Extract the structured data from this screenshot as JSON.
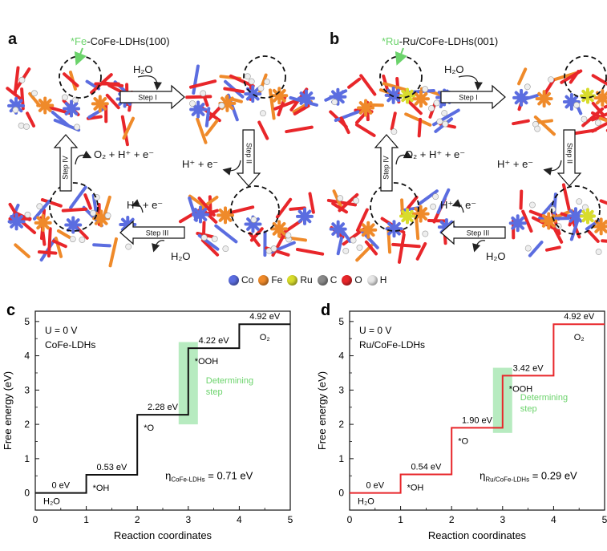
{
  "panels": {
    "a": {
      "letter": "a",
      "site_prefix": "*Fe",
      "site_suffix": "-CoFe-LDHs(100)",
      "h2o": "H₂O",
      "steps": [
        "Step I",
        "Step II",
        "Step III",
        "Step IV"
      ],
      "products": "O₂ + H⁺ + e⁻",
      "proton_electron": "H⁺ + e⁻"
    },
    "b": {
      "letter": "b",
      "site_prefix": "*Ru",
      "site_suffix": "-Ru/CoFe-LDHs(001)",
      "h2o": "H₂O",
      "steps": [
        "Step I",
        "Step II",
        "Step III",
        "Step IV"
      ],
      "products": "O₂ + H⁺ + e⁻",
      "proton_electron": "H⁺ + e⁻"
    }
  },
  "legend": [
    {
      "symbol": "Co",
      "color": "#5b6de0"
    },
    {
      "symbol": "Fe",
      "color": "#ef8a2a"
    },
    {
      "symbol": "Ru",
      "color": "#d8dc2c"
    },
    {
      "symbol": "C",
      "color": "#8a8a8a"
    },
    {
      "symbol": "O",
      "color": "#e8262a"
    },
    {
      "symbol": "H",
      "color": "#e6e6e6"
    }
  ],
  "colors": {
    "co": "#5b6de0",
    "fe": "#ef8a2a",
    "ru": "#d8dc2c",
    "o": "#e8262a",
    "h": "#eeeeee",
    "line_c": "#111111",
    "line_d": "#e8262a",
    "highlight": "#b7ebc0",
    "highlight_text": "#6bd36b"
  },
  "chart_data": [
    {
      "type": "line",
      "panel": "c",
      "xlabel": "Reaction coordinates",
      "ylabel": "Free energy (eV)",
      "xlim": [
        0,
        5
      ],
      "ylim": [
        -0.5,
        5.3
      ],
      "xticks": [
        0,
        1,
        2,
        3,
        4,
        5
      ],
      "yticks": [
        0,
        1,
        2,
        3,
        4,
        5
      ],
      "potential": "U = 0 V",
      "material": "CoFe-LDHs",
      "steps": [
        {
          "x0": 0,
          "x1": 1,
          "y": 0,
          "label": "0 eV",
          "species": "H₂O"
        },
        {
          "x0": 1,
          "x1": 2,
          "y": 0.53,
          "label": "0.53 eV",
          "species": "*OH"
        },
        {
          "x0": 2,
          "x1": 3,
          "y": 2.28,
          "label": "2.28 eV",
          "species": "*O"
        },
        {
          "x0": 3,
          "x1": 4,
          "y": 4.22,
          "label": "4.22 eV",
          "species": "*OOH"
        },
        {
          "x0": 4,
          "x1": 5,
          "y": 4.92,
          "label": "4.92 eV",
          "species": "O₂"
        }
      ],
      "determining": {
        "x": 3,
        "y0": 2.0,
        "y1": 4.4,
        "label_lines": [
          "Determining",
          "step"
        ]
      },
      "eta": {
        "symbol": "η",
        "sub": "CoFe-LDHs",
        "value": " = 0.71 eV"
      }
    },
    {
      "type": "line",
      "panel": "d",
      "xlabel": "Reaction coordinates",
      "ylabel": "Free energy (eV)",
      "xlim": [
        0,
        5
      ],
      "ylim": [
        -0.5,
        5.3
      ],
      "xticks": [
        0,
        1,
        2,
        3,
        4,
        5
      ],
      "yticks": [
        0,
        1,
        2,
        3,
        4,
        5
      ],
      "potential": "U = 0 V",
      "material": "Ru/CoFe-LDHs",
      "steps": [
        {
          "x0": 0,
          "x1": 1,
          "y": 0,
          "label": "0 eV",
          "species": "H₂O"
        },
        {
          "x0": 1,
          "x1": 2,
          "y": 0.54,
          "label": "0.54 eV",
          "species": "*OH"
        },
        {
          "x0": 2,
          "x1": 3,
          "y": 1.9,
          "label": "1.90 eV",
          "species": "*O"
        },
        {
          "x0": 3,
          "x1": 4,
          "y": 3.42,
          "label": "3.42 eV",
          "species": "*OOH"
        },
        {
          "x0": 4,
          "x1": 5,
          "y": 4.92,
          "label": "4.92 eV",
          "species": "O₂"
        }
      ],
      "determining": {
        "x": 3,
        "y0": 1.75,
        "y1": 3.65,
        "label_lines": [
          "Determining",
          "step"
        ]
      },
      "eta": {
        "symbol": "η",
        "sub": "Ru/CoFe-LDHs",
        "value": " = 0.29 eV"
      }
    }
  ]
}
